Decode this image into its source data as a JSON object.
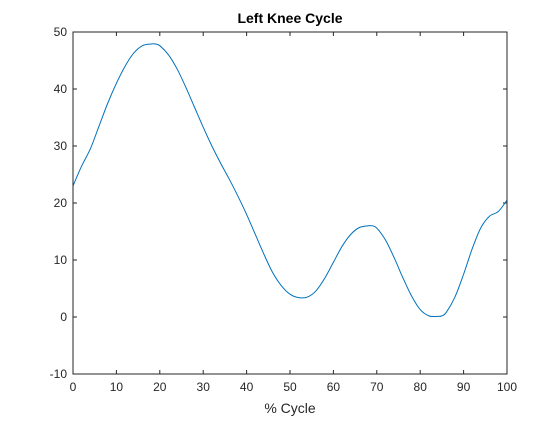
{
  "chart_data": {
    "type": "line",
    "title": "Left Knee Cycle",
    "xlabel": "% Cycle",
    "ylabel": "",
    "xlim": [
      0,
      100
    ],
    "ylim": [
      -10,
      50
    ],
    "xticks": [
      0,
      10,
      20,
      30,
      40,
      50,
      60,
      70,
      80,
      90,
      100
    ],
    "yticks": [
      -10,
      0,
      10,
      20,
      30,
      40,
      50
    ],
    "grid": false,
    "line_color": "#0072BD",
    "axis_color": "#262626",
    "series": [
      {
        "x": [
          0,
          2,
          4,
          6,
          8,
          10,
          12,
          14,
          16,
          18,
          19,
          20,
          22,
          24,
          26,
          28,
          30,
          32,
          34,
          36,
          38,
          40,
          42,
          44,
          46,
          48,
          50,
          52,
          54,
          56,
          58,
          60,
          62,
          64,
          66,
          68,
          69,
          70,
          72,
          74,
          76,
          78,
          80,
          82,
          84,
          85,
          86,
          88,
          90,
          92,
          94,
          96,
          98,
          100
        ],
        "y": [
          23.0,
          26.5,
          29.5,
          33.5,
          37.5,
          41.0,
          44.0,
          46.3,
          47.6,
          47.9,
          47.9,
          47.6,
          46.0,
          43.5,
          40.3,
          36.8,
          33.3,
          30.0,
          27.0,
          24.2,
          21.2,
          18.0,
          14.5,
          11.0,
          7.8,
          5.5,
          4.0,
          3.4,
          3.5,
          4.6,
          6.8,
          9.6,
          12.4,
          14.5,
          15.7,
          16.0,
          16.0,
          15.6,
          13.5,
          10.4,
          6.9,
          3.7,
          1.3,
          0.2,
          0.1,
          0.2,
          0.8,
          3.5,
          7.5,
          12.0,
          15.7,
          17.7,
          18.5,
          20.5
        ]
      }
    ]
  }
}
